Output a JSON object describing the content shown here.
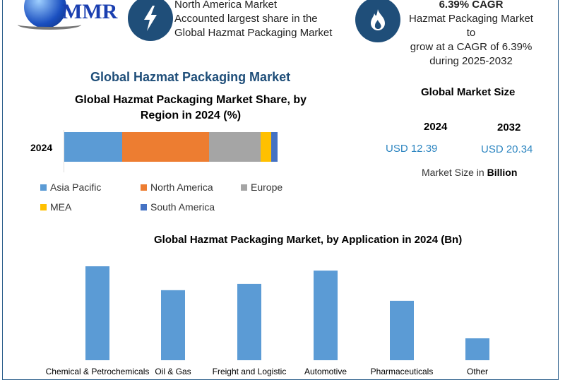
{
  "logo": {
    "text": "MMR"
  },
  "header": {
    "box1": {
      "icon": "lightning-icon",
      "lines": [
        "North America Market",
        "Accounted largest share in the",
        "Global Hazmat Packaging Market"
      ]
    },
    "box2": {
      "icon": "flame-icon",
      "title": "6.39% CAGR",
      "lines": [
        "Hazmat Packaging Market to",
        "grow at a CAGR of 6.39%",
        "during 2025-2032"
      ]
    }
  },
  "main_title": "Global Hazmat Packaging Market",
  "market_size": {
    "title": "Global Market Size",
    "years": [
      "2024",
      "2032"
    ],
    "values": [
      "USD 12.39",
      "USD 20.34"
    ],
    "note_prefix": "Market Size in ",
    "note_bold": "Billion"
  },
  "colors": {
    "Asia Pacific": "#5b9bd5",
    "North America": "#ed7d31",
    "Europe": "#a5a5a5",
    "MEA": "#ffc000",
    "South America": "#4472c4",
    "bar": "#5b9bd5",
    "accent": "#1f4e79",
    "value_text": "#2e86c1"
  },
  "chart_data": [
    {
      "type": "bar",
      "orientation": "horizontal",
      "stacked": true,
      "title": "Global Hazmat Packaging Market Share, by Region in 2024 (%)",
      "title_lines": [
        "Global Hazmat Packaging Market Share, by",
        "Region in 2024 (%)"
      ],
      "categories": [
        "2024"
      ],
      "series": [
        {
          "name": "Asia Pacific",
          "values": [
            27
          ]
        },
        {
          "name": "North America",
          "values": [
            41
          ]
        },
        {
          "name": "Europe",
          "values": [
            24
          ]
        },
        {
          "name": "MEA",
          "values": [
            5
          ]
        },
        {
          "name": "South America",
          "values": [
            3
          ]
        }
      ],
      "legend": "bottom",
      "xlim": [
        0,
        100
      ]
    },
    {
      "type": "bar",
      "title": "Global Hazmat Packaging Market, by Application in 2024 (Bn)",
      "categories": [
        "Chemical & Petrochemicals",
        "Oil & Gas",
        "Freight and Logistic",
        "Automotive",
        "Pharmaceuticals",
        "Other"
      ],
      "values": [
        2.83,
        2.11,
        2.3,
        2.7,
        1.79,
        0.66
      ],
      "grid": false
    }
  ]
}
